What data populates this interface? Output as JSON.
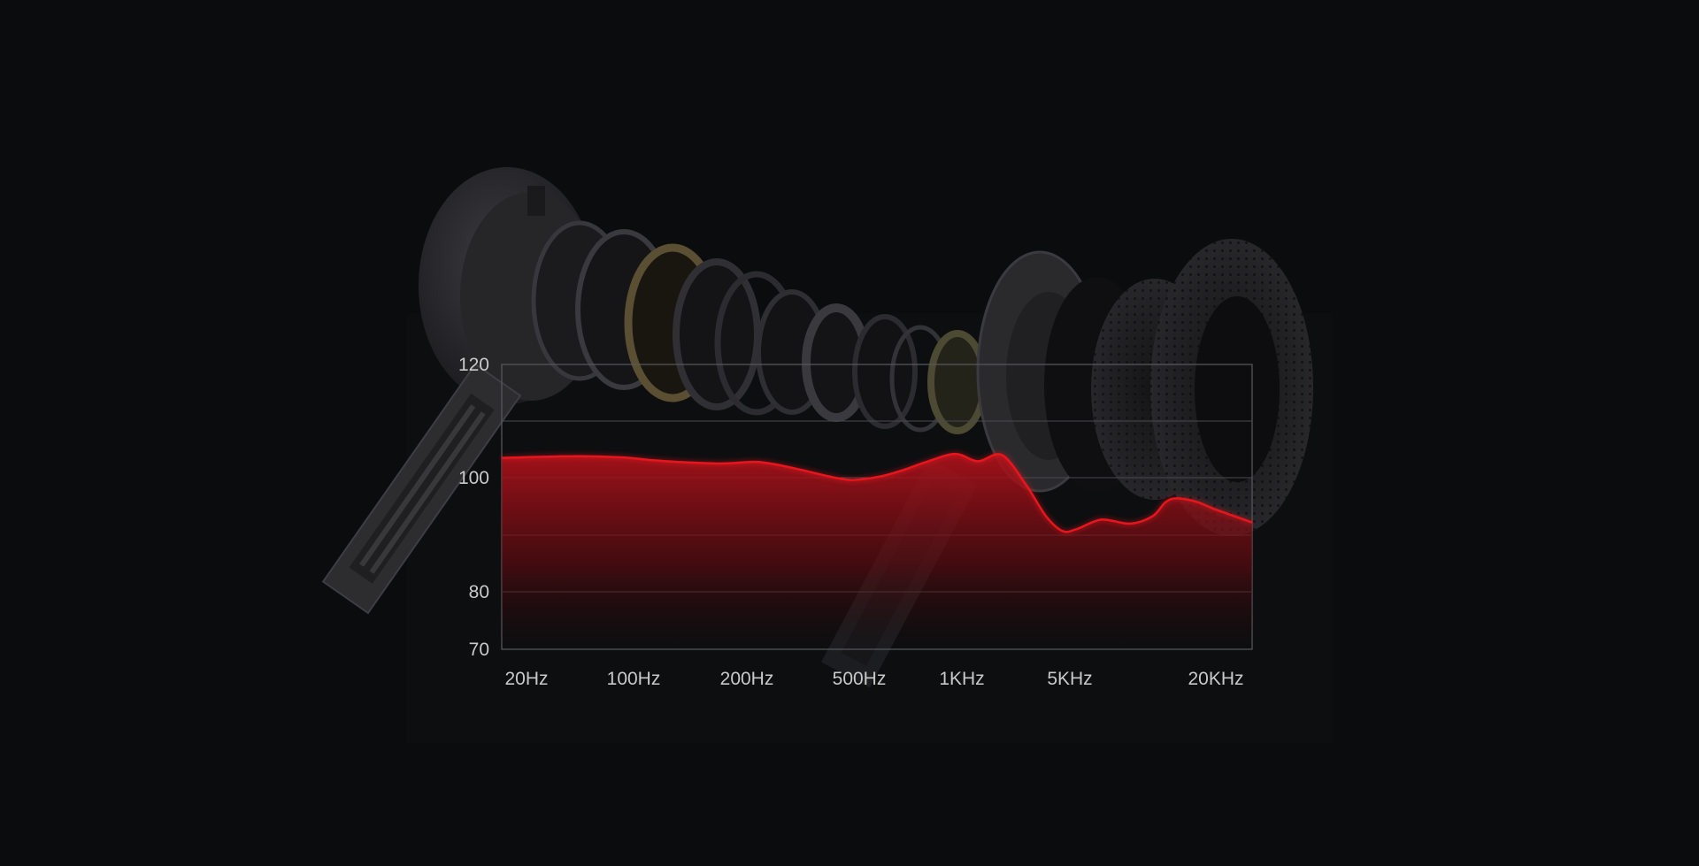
{
  "chart_data": {
    "type": "area",
    "title": "",
    "xlabel": "",
    "ylabel": "",
    "y_ticks": [
      "120",
      "100",
      "80",
      "70"
    ],
    "x_ticks": [
      "20Hz",
      "100Hz",
      "200Hz",
      "500Hz",
      "1KHz",
      "5KHz",
      "20KHz"
    ],
    "ylim": [
      70,
      120
    ],
    "grid": true,
    "series": [
      {
        "color": "#e8151d",
        "x": [
          "20Hz",
          "40Hz",
          "60Hz",
          "80Hz",
          "100Hz",
          "150Hz",
          "200Hz",
          "230Hz",
          "300Hz",
          "400Hz",
          "500Hz",
          "650Hz",
          "800Hz",
          "1KHz",
          "1.3KHz",
          "1.6KHz",
          "2KHz",
          "2.5KHz",
          "3KHz",
          "3.5KHz",
          "4KHz",
          "5KHz",
          "6.5KHz",
          "8KHz",
          "9KHz",
          "10KHz",
          "12KHz",
          "14KHz",
          "16KHz",
          "20KHz"
        ],
        "values": [
          103.5,
          103.8,
          103.6,
          103.1,
          102.8,
          102.5,
          102.8,
          102.6,
          101.6,
          100.3,
          99.6,
          100.2,
          101.3,
          102.8,
          104.2,
          102.9,
          104.0,
          98.7,
          93.3,
          90.7,
          91.1,
          92.7,
          92.0,
          93.3,
          95.7,
          96.4,
          95.8,
          94.6,
          93.7,
          92.2
        ]
      }
    ]
  }
}
